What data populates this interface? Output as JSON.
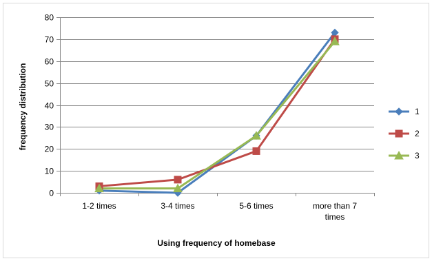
{
  "chart_data": {
    "type": "line",
    "title": "",
    "xlabel": "Using frequency of homebase",
    "ylabel": "frequency distribution",
    "categories": [
      "1-2 times",
      "3-4 times",
      "5-6 times",
      "more than  7 times"
    ],
    "ylim": [
      0,
      80
    ],
    "yticks": [
      0,
      10,
      20,
      30,
      40,
      50,
      60,
      70,
      80
    ],
    "grid": true,
    "legend_position": "right",
    "series": [
      {
        "name": "1",
        "color": "#4a7ebb",
        "marker": "diamond",
        "values": [
          1,
          0,
          26,
          73
        ]
      },
      {
        "name": "2",
        "color": "#be4b48",
        "marker": "square",
        "values": [
          3,
          6,
          19,
          70
        ]
      },
      {
        "name": "3",
        "color": "#98b954",
        "marker": "triangle",
        "values": [
          2,
          2,
          26,
          69
        ]
      }
    ]
  }
}
